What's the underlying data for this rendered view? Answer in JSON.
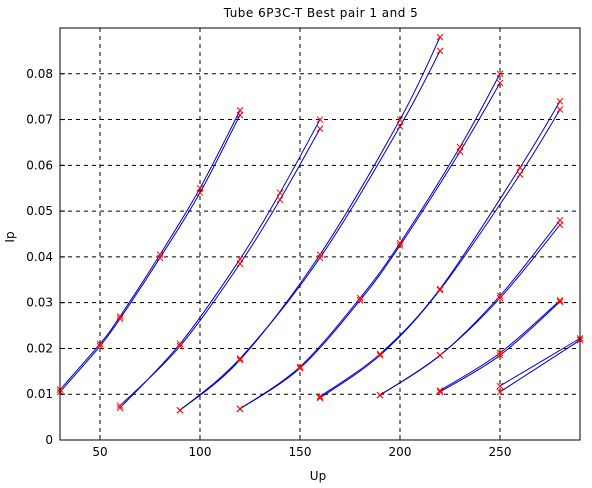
{
  "chart_data": {
    "type": "line",
    "title": "Tube  6P3C-T   Best pair  1 and 5",
    "xlabel": "Up",
    "ylabel": "Ip",
    "xlim": [
      30,
      290
    ],
    "ylim": [
      0,
      0.09
    ],
    "xticks": [
      50,
      100,
      150,
      200,
      250
    ],
    "xtick_labels": [
      "50",
      "100",
      "150",
      "200",
      "250"
    ],
    "yticks": [
      0,
      0.01,
      0.02,
      0.03,
      0.04,
      0.05,
      0.06,
      0.07,
      0.08
    ],
    "ytick_labels": [
      "0",
      "0.01",
      "0.02",
      "0.03",
      "0.04",
      "0.05",
      "0.06",
      "0.07",
      "0.08"
    ],
    "grid": true,
    "line_color": "#0000cc",
    "marker_color": "#ff0000",
    "series": [
      {
        "x": [
          30,
          50,
          60,
          80,
          100,
          120
        ],
        "y": [
          0.011,
          0.021,
          0.027,
          0.0405,
          0.055,
          0.072
        ]
      },
      {
        "x": [
          30,
          50,
          60,
          80,
          100,
          120
        ],
        "y": [
          0.0105,
          0.0205,
          0.0265,
          0.0398,
          0.054,
          0.071
        ]
      },
      {
        "x": [
          60,
          90,
          120,
          140,
          160
        ],
        "y": [
          0.007,
          0.021,
          0.0395,
          0.054,
          0.07
        ]
      },
      {
        "x": [
          60,
          90,
          120,
          140,
          160
        ],
        "y": [
          0.0075,
          0.0205,
          0.0385,
          0.0525,
          0.068
        ]
      },
      {
        "x": [
          90,
          120,
          160,
          200,
          220
        ],
        "y": [
          0.0065,
          0.0175,
          0.0405,
          0.07,
          0.088
        ]
      },
      {
        "x": [
          90,
          120,
          160,
          200,
          220
        ],
        "y": [
          0.0065,
          0.0178,
          0.0398,
          0.0685,
          0.085
        ]
      },
      {
        "x": [
          120,
          150,
          180,
          200,
          230,
          250
        ],
        "y": [
          0.0068,
          0.016,
          0.031,
          0.043,
          0.064,
          0.08
        ]
      },
      {
        "x": [
          120,
          150,
          180,
          200,
          230,
          250
        ],
        "y": [
          0.0068,
          0.0157,
          0.0305,
          0.0425,
          0.063,
          0.078
        ]
      },
      {
        "x": [
          160,
          190,
          220,
          260,
          280
        ],
        "y": [
          0.0095,
          0.0188,
          0.033,
          0.0595,
          0.074
        ]
      },
      {
        "x": [
          160,
          190,
          220,
          260,
          280
        ],
        "y": [
          0.0092,
          0.0185,
          0.0328,
          0.058,
          0.0722
        ]
      },
      {
        "x": [
          190,
          220,
          250,
          280
        ],
        "y": [
          0.0098,
          0.0185,
          0.0315,
          0.048
        ]
      },
      {
        "x": [
          190,
          220,
          250,
          280
        ],
        "y": [
          0.0098,
          0.0185,
          0.031,
          0.047
        ]
      },
      {
        "x": [
          220,
          250,
          280
        ],
        "y": [
          0.0108,
          0.019,
          0.0305
        ]
      },
      {
        "x": [
          220,
          250,
          280
        ],
        "y": [
          0.0105,
          0.0185,
          0.0302
        ]
      },
      {
        "x": [
          250,
          290
        ],
        "y": [
          0.0118,
          0.0222
        ]
      },
      {
        "x": [
          250,
          290
        ],
        "y": [
          0.0105,
          0.0218
        ]
      }
    ]
  }
}
